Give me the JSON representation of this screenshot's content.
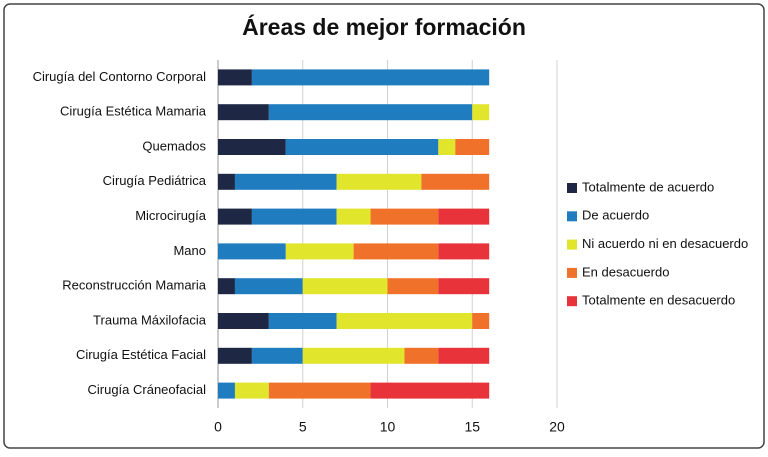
{
  "chart_data": {
    "type": "stacked-barh",
    "title": "Áreas de mejor formación",
    "categories": [
      "Cirugía del Contorno Corporal",
      "Cirugía Estética Mamaria",
      "Quemados",
      "Cirugía Pediátrica",
      "Microcirugía",
      "Mano",
      "Reconstrucción Mamaria",
      "Trauma Máxilofacia",
      "Cirugía Estética Facial",
      "Cirugía Cráneofacial"
    ],
    "series": [
      {
        "name": "Totalmente de acuerdo",
        "color": "#1e2845",
        "values": [
          2,
          3,
          4,
          1,
          2,
          0,
          1,
          3,
          2,
          0
        ]
      },
      {
        "name": "De acuerdo",
        "color": "#1f7dbf",
        "values": [
          14,
          12,
          9,
          6,
          5,
          4,
          4,
          4,
          3,
          1
        ]
      },
      {
        "name": "Ni acuerdo ni en desacuerdo",
        "color": "#e1e52c",
        "values": [
          0,
          1,
          1,
          5,
          2,
          4,
          5,
          8,
          6,
          2
        ]
      },
      {
        "name": "En desacuerdo",
        "color": "#f07129",
        "values": [
          0,
          0,
          2,
          4,
          4,
          5,
          3,
          1,
          2,
          6
        ]
      },
      {
        "name": "Totalmente en desacuerdo",
        "color": "#e8333b",
        "values": [
          0,
          0,
          0,
          0,
          3,
          3,
          3,
          0,
          3,
          7
        ]
      }
    ],
    "xlim": [
      0,
      20
    ],
    "xticks": [
      0,
      5,
      10,
      15,
      20
    ],
    "grid": true,
    "legend": "right"
  }
}
